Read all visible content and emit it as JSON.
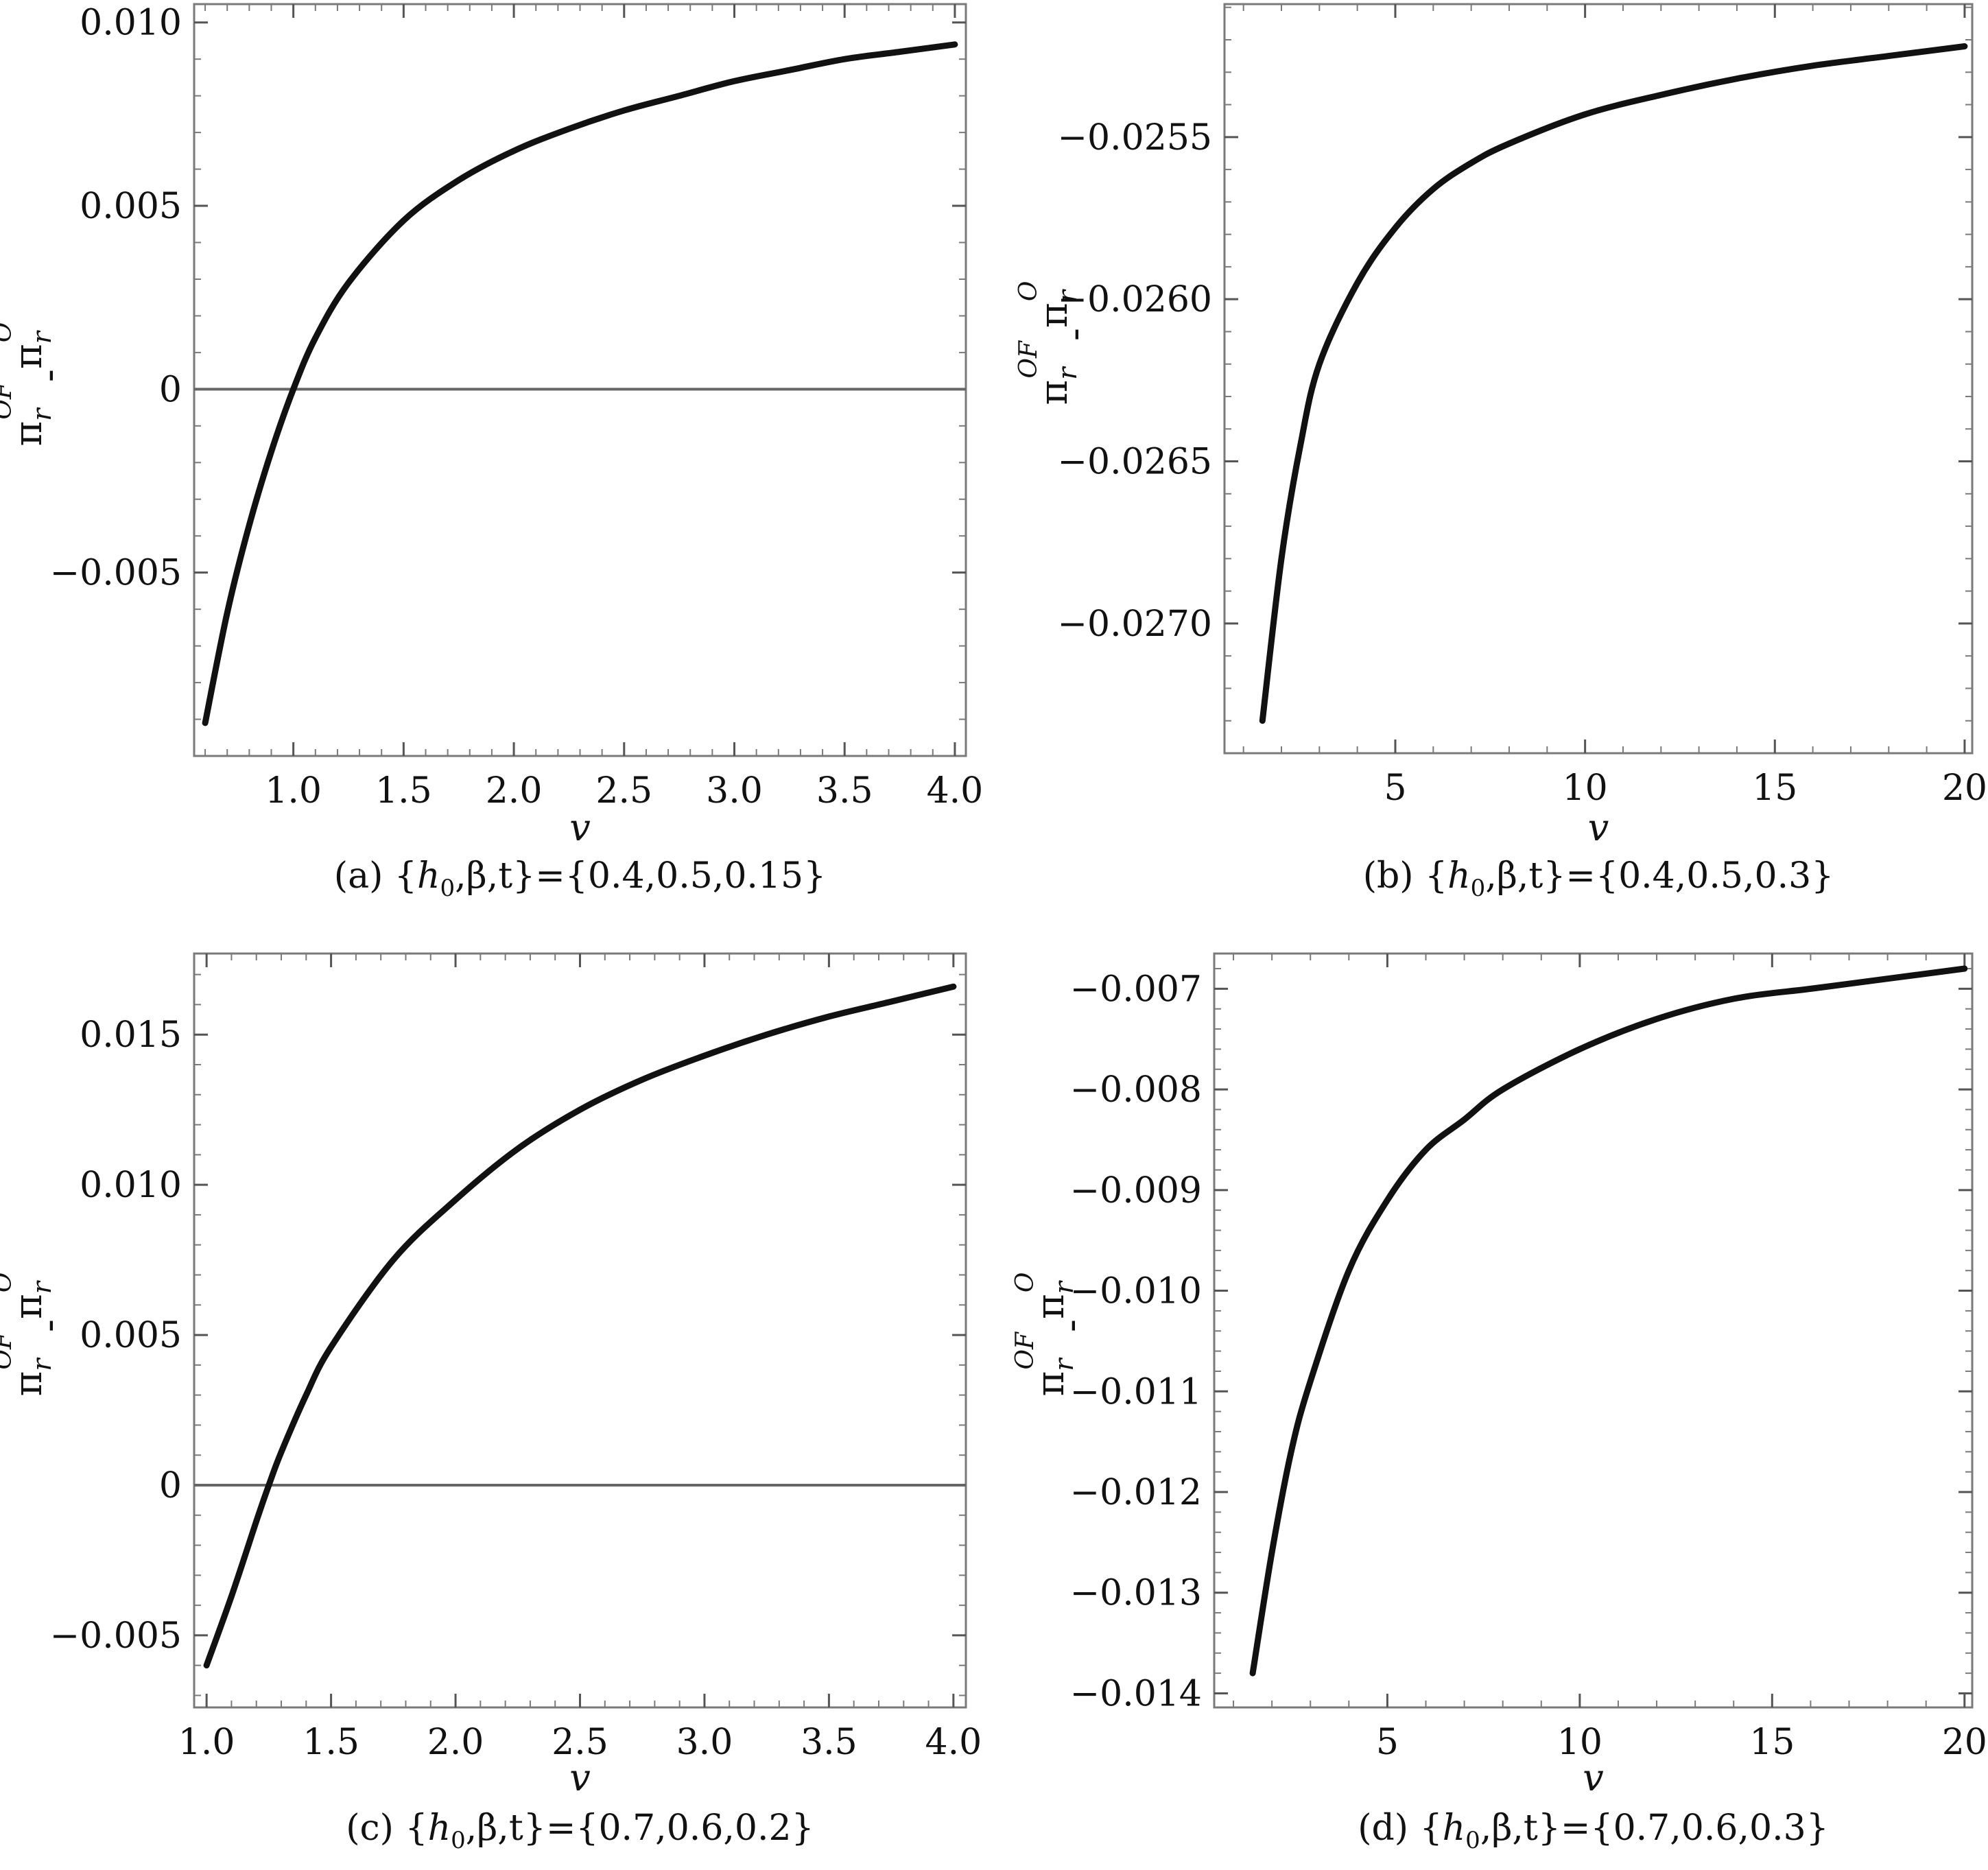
{
  "chart_data": [
    {
      "type": "line",
      "panel_label": "(a)",
      "caption": {
        "prefix": "(a) {",
        "h": "h",
        "h_sub": "0",
        "rest": ",β,t}={0.4,0.5,0.15}"
      },
      "xlabel": "v",
      "ylabel": {
        "base1": "π",
        "sub1": "r",
        "sup1": "OF",
        "minus": "-",
        "base2": "π",
        "sub2": "r",
        "sup2": "O"
      },
      "xlim": [
        0.55,
        4.05
      ],
      "ylim": [
        -0.01,
        0.0105
      ],
      "xticks": [
        1.0,
        1.5,
        2.0,
        2.5,
        3.0,
        3.5,
        4.0
      ],
      "xtick_labels": [
        "1.0",
        "1.5",
        "2.0",
        "2.5",
        "3.0",
        "3.5",
        "4.0"
      ],
      "yticks": [
        -0.005,
        0,
        0.005,
        0.01
      ],
      "ytick_labels": [
        "−0.005",
        "0",
        "0.005",
        "0.010"
      ],
      "zero_line": true,
      "series": [
        {
          "x": [
            0.6,
            0.7,
            0.8,
            0.9,
            1.0,
            1.1,
            1.25,
            1.5,
            1.75,
            2.0,
            2.25,
            2.5,
            2.75,
            3.0,
            3.25,
            3.5,
            3.75,
            4.0
          ],
          "y": [
            -0.0091,
            -0.0061,
            -0.0037,
            -0.0017,
            0.0,
            0.0014,
            0.0029,
            0.0046,
            0.0057,
            0.0065,
            0.0071,
            0.0076,
            0.008,
            0.0084,
            0.0087,
            0.009,
            0.0092,
            0.0094
          ]
        }
      ]
    },
    {
      "type": "line",
      "panel_label": "(b)",
      "caption": {
        "prefix": "(b) {",
        "h": "h",
        "h_sub": "0",
        "rest": ",β,t}={0.4,0.5,0.3}"
      },
      "xlabel": "v",
      "ylabel": {
        "base1": "π",
        "sub1": "r",
        "sup1": "OF",
        "minus": "-",
        "base2": "π",
        "sub2": "r",
        "sup2": "O"
      },
      "xlim": [
        0.5,
        20.2
      ],
      "ylim": [
        -0.0274,
        -0.02509
      ],
      "xticks": [
        5,
        10,
        15,
        20
      ],
      "xtick_labels": [
        "5",
        "10",
        "15",
        "20"
      ],
      "yticks": [
        -0.027,
        -0.0265,
        -0.026,
        -0.0255
      ],
      "ytick_labels": [
        "−0.0270",
        "−0.0265",
        "−0.0260",
        "−0.0255"
      ],
      "zero_line": false,
      "series": [
        {
          "x": [
            1.5,
            2.0,
            2.5,
            3.0,
            4.0,
            5.0,
            6.0,
            7.0,
            8.0,
            10.0,
            12.0,
            14.0,
            16.0,
            18.0,
            20.0
          ],
          "y": [
            -0.0273,
            -0.0268,
            -0.02645,
            -0.0262,
            -0.02595,
            -0.02578,
            -0.02566,
            -0.02558,
            -0.02552,
            -0.02543,
            -0.02537,
            -0.02532,
            -0.02528,
            -0.02525,
            -0.02522
          ]
        }
      ]
    },
    {
      "type": "line",
      "panel_label": "(c)",
      "caption": {
        "prefix": "(c) {",
        "h": "h",
        "h_sub": "0",
        "rest": ",β,t}={0.7,0.6,0.2}"
      },
      "xlabel": "v",
      "ylabel": {
        "base1": "π",
        "sub1": "r",
        "sup1": "OF",
        "minus": "-",
        "base2": "π",
        "sub2": "r",
        "sup2": "O"
      },
      "xlim": [
        0.95,
        4.05
      ],
      "ylim": [
        -0.0074,
        0.0177
      ],
      "xticks": [
        1.0,
        1.5,
        2.0,
        2.5,
        3.0,
        3.5,
        4.0
      ],
      "xtick_labels": [
        "1.0",
        "1.5",
        "2.0",
        "2.5",
        "3.0",
        "3.5",
        "4.0"
      ],
      "yticks": [
        -0.005,
        0,
        0.005,
        0.01,
        0.015
      ],
      "ytick_labels": [
        "−0.005",
        "0",
        "0.005",
        "0.010",
        "0.015"
      ],
      "zero_line": true,
      "series": [
        {
          "x": [
            1.0,
            1.1,
            1.2,
            1.25,
            1.3,
            1.4,
            1.5,
            1.75,
            2.0,
            2.25,
            2.5,
            2.75,
            3.0,
            3.25,
            3.5,
            3.75,
            4.0
          ],
          "y": [
            -0.006,
            -0.0037,
            -0.0012,
            0.0,
            0.0011,
            0.003,
            0.0046,
            0.0075,
            0.0095,
            0.0112,
            0.0125,
            0.0135,
            0.0143,
            0.015,
            0.0156,
            0.0161,
            0.0166
          ]
        }
      ]
    },
    {
      "type": "line",
      "panel_label": "(d)",
      "caption": {
        "prefix": "(d) {",
        "h": "h",
        "h_sub": "0",
        "rest": ",β,t}={0.7,0.6,0.3}"
      },
      "xlabel": "v",
      "ylabel": {
        "base1": "π",
        "sub1": "r",
        "sup1": "OF",
        "minus": "-",
        "base2": "π",
        "sub2": "r",
        "sup2": "O"
      },
      "xlim": [
        0.5,
        20.2
      ],
      "ylim": [
        -0.01414,
        -0.00665
      ],
      "xticks": [
        5,
        10,
        15,
        20
      ],
      "xtick_labels": [
        "5",
        "10",
        "15",
        "20"
      ],
      "yticks": [
        -0.014,
        -0.013,
        -0.012,
        -0.011,
        -0.01,
        -0.009,
        -0.008,
        -0.007
      ],
      "ytick_labels": [
        "−0.014",
        "−0.013",
        "−0.012",
        "−0.011",
        "−0.010",
        "−0.009",
        "−0.008",
        "−0.007"
      ],
      "zero_line": false,
      "series": [
        {
          "x": [
            1.5,
            2.0,
            2.5,
            3.0,
            4.0,
            5.0,
            6.0,
            7.0,
            8.0,
            10.0,
            12.0,
            14.0,
            16.0,
            18.0,
            20.0
          ],
          "y": [
            -0.0138,
            -0.0126,
            -0.0116,
            -0.0109,
            -0.0098,
            -0.0091,
            -0.0086,
            -0.0083,
            -0.008,
            -0.0076,
            -0.0073,
            -0.0071,
            -0.007,
            -0.0069,
            -0.0068
          ]
        }
      ]
    }
  ]
}
